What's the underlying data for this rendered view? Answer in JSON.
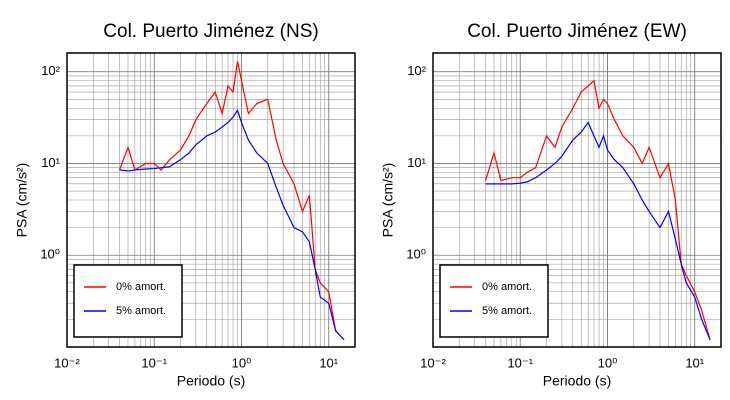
{
  "chart_data": [
    {
      "type": "line",
      "title": "Col. Puerto Jiménez (NS)",
      "x_label": "Periodo (s)",
      "y_label": "PSA (cm/s²)",
      "log_x": true,
      "log_y": true,
      "grid": true,
      "legend": "lower left",
      "xlim": [
        0.01,
        20
      ],
      "ylim": [
        0.1,
        160
      ],
      "xticks": [
        {
          "value": 0.01,
          "label": "10⁻²"
        },
        {
          "value": 0.1,
          "label": "10⁻¹"
        },
        {
          "value": 1,
          "label": "10⁰"
        },
        {
          "value": 10,
          "label": "10¹"
        }
      ],
      "yticks": [
        {
          "value": 1,
          "label": "10⁰"
        },
        {
          "value": 10,
          "label": "10¹"
        },
        {
          "value": 100,
          "label": "10²"
        }
      ],
      "x": [
        0.04,
        0.05,
        0.06,
        0.08,
        0.1,
        0.12,
        0.15,
        0.2,
        0.25,
        0.3,
        0.4,
        0.5,
        0.6,
        0.7,
        0.8,
        0.9,
        1.0,
        1.2,
        1.5,
        2,
        2.5,
        3,
        4,
        5,
        6,
        7,
        8,
        10,
        12,
        15
      ],
      "series": [
        {
          "name": "0% amort.",
          "color": "#ff0000",
          "values": [
            8.5,
            15,
            8.5,
            10,
            10,
            8.5,
            11,
            14,
            20,
            30,
            45,
            60,
            35,
            70,
            60,
            130,
            80,
            35,
            45,
            50,
            18,
            10,
            6,
            3,
            4.5,
            0.7,
            0.5,
            0.4,
            0.15,
            0.12
          ]
        },
        {
          "name": "5% amort.",
          "color": "#0000ff",
          "values": [
            8.5,
            8.3,
            8.5,
            8.7,
            8.8,
            9,
            9.2,
            11,
            13,
            16,
            20,
            22,
            25,
            28,
            32,
            38,
            28,
            18,
            13,
            10,
            5.5,
            3.5,
            2,
            1.8,
            1.4,
            0.7,
            0.35,
            0.3,
            0.15,
            0.12
          ]
        }
      ]
    },
    {
      "type": "line",
      "title": "Col. Puerto Jiménez (EW)",
      "x_label": "Periodo (s)",
      "y_label": "PSA (cm/s²)",
      "log_x": true,
      "log_y": true,
      "grid": true,
      "legend": "lower left",
      "xlim": [
        0.01,
        20
      ],
      "ylim": [
        0.1,
        160
      ],
      "xticks": [
        {
          "value": 0.01,
          "label": "10⁻²"
        },
        {
          "value": 0.1,
          "label": "10⁻¹"
        },
        {
          "value": 1,
          "label": "10⁰"
        },
        {
          "value": 10,
          "label": "10¹"
        }
      ],
      "yticks": [
        {
          "value": 1,
          "label": "10⁰"
        },
        {
          "value": 10,
          "label": "10¹"
        },
        {
          "value": 100,
          "label": "10²"
        }
      ],
      "x": [
        0.04,
        0.05,
        0.06,
        0.08,
        0.1,
        0.12,
        0.15,
        0.2,
        0.25,
        0.3,
        0.4,
        0.5,
        0.6,
        0.7,
        0.8,
        0.9,
        1.0,
        1.2,
        1.5,
        2,
        2.5,
        3,
        4,
        5,
        6,
        7,
        8,
        10,
        12,
        15
      ],
      "series": [
        {
          "name": "0% amort.",
          "color": "#ff0000",
          "values": [
            6.5,
            13,
            6.5,
            7,
            7,
            8,
            9,
            20,
            15,
            25,
            40,
            60,
            70,
            80,
            40,
            50,
            45,
            30,
            20,
            15,
            10,
            15,
            7,
            10,
            4,
            0.8,
            0.6,
            0.4,
            0.25,
            0.12
          ]
        },
        {
          "name": "5% amort.",
          "color": "#0000ff",
          "values": [
            6,
            6,
            6,
            6,
            6.1,
            6.3,
            7,
            8.5,
            10,
            12,
            18,
            22,
            28,
            20,
            15,
            20,
            14,
            11,
            9,
            6,
            4,
            3,
            2,
            3,
            1.5,
            0.8,
            0.5,
            0.35,
            0.2,
            0.12
          ]
        }
      ]
    }
  ]
}
